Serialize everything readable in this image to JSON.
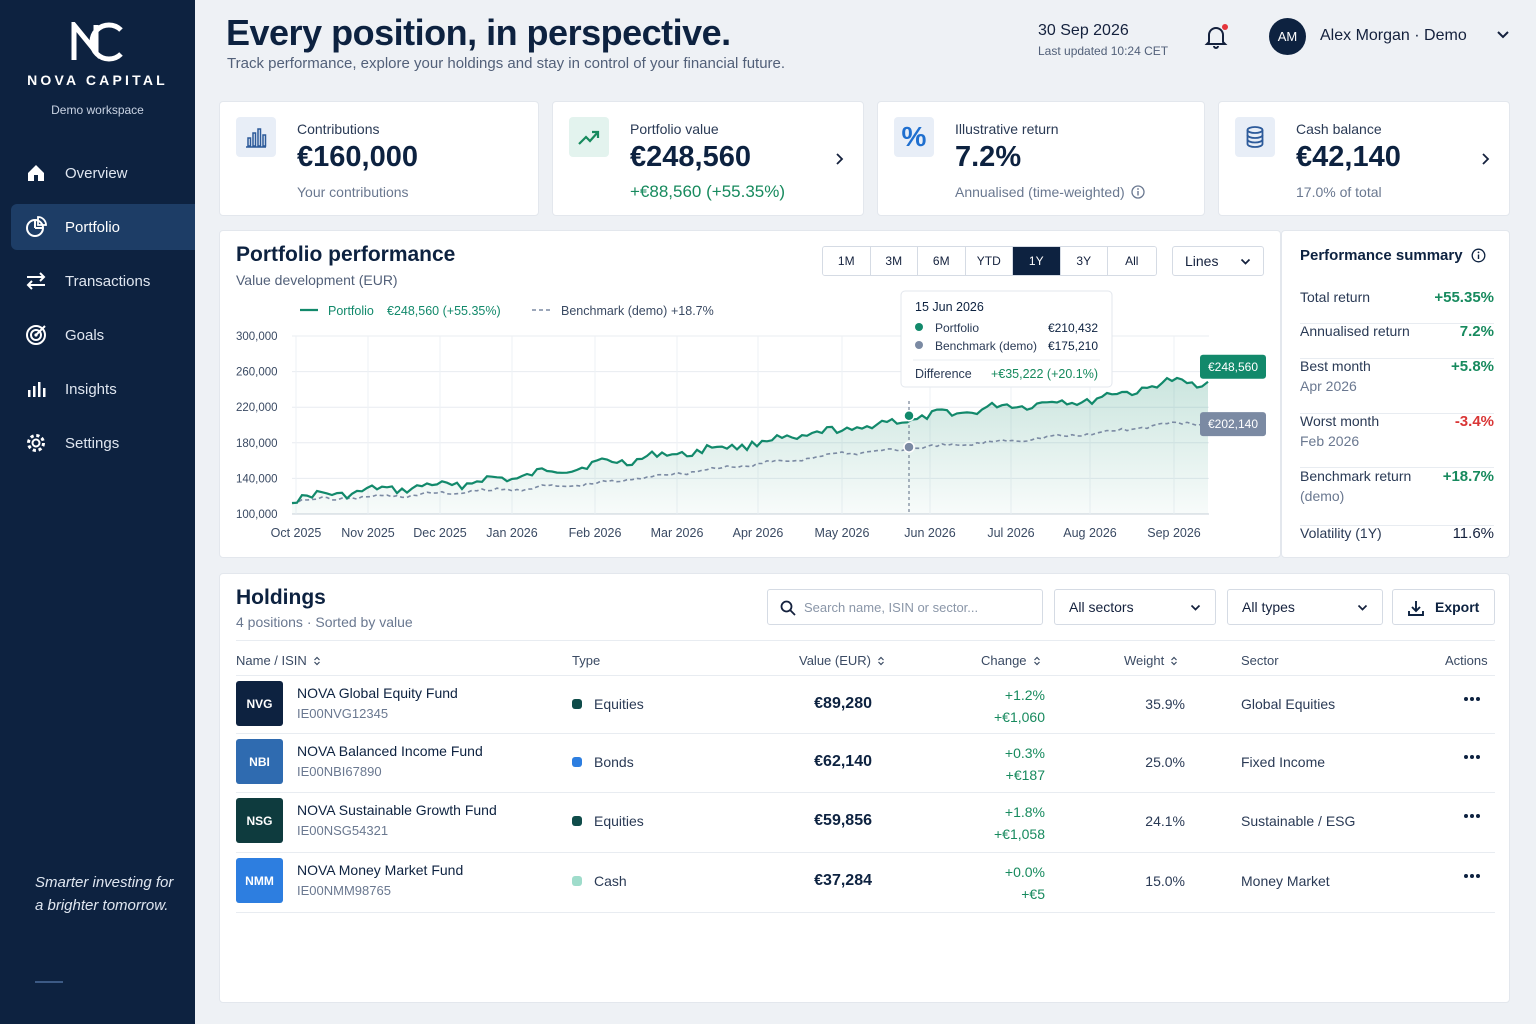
{
  "brand": {
    "name": "NOVA CAPITAL",
    "workspace": "Demo workspace",
    "tagline": "Smarter investing for a brighter tomorrow."
  },
  "nav": [
    {
      "label": "Overview",
      "icon": "home-icon"
    },
    {
      "label": "Portfolio",
      "icon": "pie-chart-icon",
      "active": true
    },
    {
      "label": "Transactions",
      "icon": "arrows-swap-icon"
    },
    {
      "label": "Goals",
      "icon": "target-icon"
    },
    {
      "label": "Insights",
      "icon": "bar-chart-icon"
    },
    {
      "label": "Settings",
      "icon": "gear-icon"
    }
  ],
  "header": {
    "title": "Every position, in perspective.",
    "subtitle": "Track performance, explore your holdings and stay in control of your financial future.",
    "date": "30 Sep 2026",
    "updated": "Last updated 10:24 CET",
    "user_initials": "AM",
    "user_name": "Alex Morgan · Demo"
  },
  "kpis": [
    {
      "label": "Contributions",
      "value": "€160,000",
      "sub": "Your contributions",
      "icon": "bar-chart-icon"
    },
    {
      "label": "Portfolio value",
      "value": "€248,560",
      "sub": "+€88,560 (+55.35%)",
      "icon": "trend-up-icon"
    },
    {
      "label": "Illustrative return",
      "value": "7.2%",
      "sub": "Annualised (time-weighted)",
      "icon": "percent-icon"
    },
    {
      "label": "Cash balance",
      "value": "€42,140",
      "sub": "17.0% of total",
      "icon": "database-icon"
    }
  ],
  "performance": {
    "title": "Portfolio performance",
    "subtitle": "Value development (EUR)",
    "ranges": [
      "1M",
      "3M",
      "6M",
      "YTD",
      "1Y",
      "3Y",
      "All"
    ],
    "active_range": "1Y",
    "view_select": "Lines",
    "tooltip": {
      "date": "15 Jun 2026",
      "portfolio_label": "Portfolio",
      "portfolio_value": "€210,432",
      "benchmark_label": "Benchmark (demo)",
      "benchmark_value": "€175,210",
      "diff_label": "Difference",
      "diff_value": "+€35,222 (+20.1%)"
    },
    "end_labels": {
      "portfolio": "€248,560",
      "benchmark": "€202,140"
    }
  },
  "chart_data": {
    "type": "line",
    "x": [
      "Oct 2025",
      "Nov 2025",
      "Dec 2025",
      "Jan 2026",
      "Feb 2026",
      "Mar 2026",
      "Apr 2026",
      "May 2026",
      "Jun 2026",
      "Jul 2026",
      "Aug 2026",
      "Sep 2026"
    ],
    "series": [
      {
        "name": "Portfolio",
        "legend_value": "€248,560 (+55.35%)",
        "color": "#12896b",
        "values": [
          118000,
          126000,
          132000,
          141000,
          156000,
          168000,
          180000,
          194000,
          210000,
          222000,
          228000,
          248560
        ]
      },
      {
        "name": "Benchmark (demo)",
        "legend_value": "+18.7%",
        "color": "#7b8aa3",
        "values": [
          115000,
          119000,
          123000,
          128000,
          134000,
          146000,
          156000,
          168000,
          175000,
          183000,
          190000,
          202140
        ]
      }
    ],
    "yticks": [
      "300,000",
      "260,000",
      "220,000",
      "180,000",
      "140,000",
      "100,000"
    ],
    "ylim": [
      100000,
      300000
    ],
    "grid": true,
    "legend": "top-left"
  },
  "summary": {
    "title": "Performance summary",
    "rows": [
      {
        "label": "Total return",
        "value": "+55.35%",
        "tone": "pos"
      },
      {
        "label": "Annualised return",
        "value": "7.2%",
        "tone": "pos"
      },
      {
        "label": "Best month",
        "sublabel": "Apr 2026",
        "value": "+5.8%",
        "tone": "pos"
      },
      {
        "label": "Worst month",
        "sublabel": "Feb 2026",
        "value": "-3.4%",
        "tone": "neg"
      },
      {
        "label": "Benchmark return",
        "sublabel": "(demo)",
        "value": "+18.7%",
        "tone": "pos"
      },
      {
        "label": "Volatility (1Y)",
        "value": "11.6%",
        "tone": "neu"
      }
    ]
  },
  "holdings": {
    "title": "Holdings",
    "count": "4 positions",
    "sort": "Sorted by value",
    "search_placeholder": "Search name, ISIN or sector...",
    "sector_filter": "All sectors",
    "type_filter": "All types",
    "export_label": "Export",
    "columns": {
      "name": "Name / ISIN",
      "type": "Type",
      "value": "Value (EUR)",
      "change": "Change",
      "weight": "Weight",
      "sector": "Sector",
      "actions": "Actions"
    },
    "rows": [
      {
        "ticker": "NVG",
        "tick_color": "#0d2240",
        "name": "NOVA Global Equity Fund",
        "isin": "IE00NVG12345",
        "type": "Equities",
        "type_color": "#0f4c4a",
        "value": "€89,280",
        "change_pct": "+1.2%",
        "change_abs": "+€1,060",
        "weight": "35.9%",
        "sector": "Global Equities"
      },
      {
        "ticker": "NBI",
        "tick_color": "#2f6bb0",
        "name": "NOVA Balanced Income Fund",
        "isin": "IE00NBI67890",
        "type": "Bonds",
        "type_color": "#2d7ee0",
        "value": "€62,140",
        "change_pct": "+0.3%",
        "change_abs": "+€187",
        "weight": "25.0%",
        "sector": "Fixed Income"
      },
      {
        "ticker": "NSG",
        "tick_color": "#0e3b3e",
        "name": "NOVA Sustainable Growth Fund",
        "isin": "IE00NSG54321",
        "type": "Equities",
        "type_color": "#0f4c4a",
        "value": "€59,856",
        "change_pct": "+1.8%",
        "change_abs": "+€1,058",
        "weight": "24.1%",
        "sector": "Sustainable / ESG"
      },
      {
        "ticker": "NMM",
        "tick_color": "#2d7ee0",
        "name": "NOVA Money Market Fund",
        "isin": "IE00NMM98765",
        "type": "Cash",
        "type_color": "#9fdccb",
        "value": "€37,284",
        "change_pct": "+0.0%",
        "change_abs": "+€5",
        "weight": "15.0%",
        "sector": "Money Market"
      }
    ]
  }
}
